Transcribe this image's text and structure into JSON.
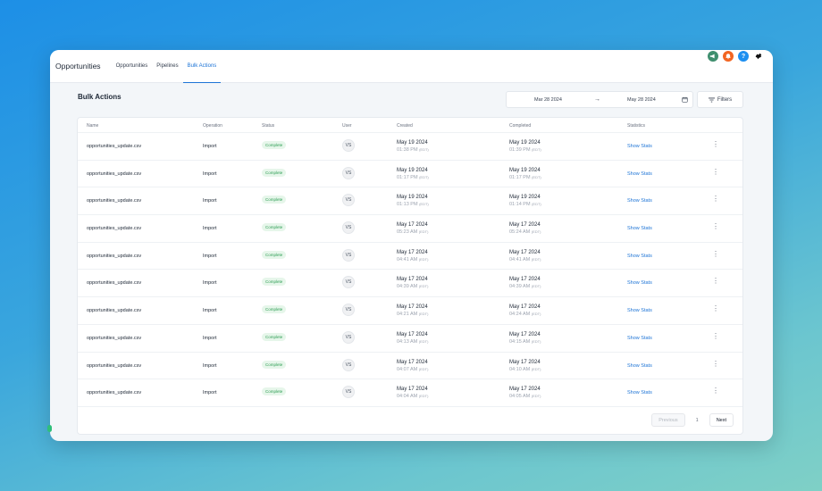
{
  "app": {
    "title": "Opportunities"
  },
  "nav": {
    "tabs": [
      "Opportunities",
      "Pipelines",
      "Bulk Actions"
    ]
  },
  "topbar": {
    "icons": [
      {
        "name": "megaphone-icon",
        "color": "#3f8f6e"
      },
      {
        "name": "bell-icon",
        "color": "#f26522"
      },
      {
        "name": "help-icon",
        "color": "#1d8ff0",
        "glyph": "?"
      },
      {
        "name": "avatar-icon",
        "color": "#111111"
      }
    ]
  },
  "page": {
    "title": "Bulk Actions"
  },
  "filters": {
    "date_from": "Mar 28 2024",
    "date_to": "May 28 2024",
    "arrow": "→",
    "filters_label": "Filters"
  },
  "table": {
    "headers": {
      "name": "Name",
      "operation": "Operation",
      "status": "Status",
      "user": "User",
      "created": "Created",
      "completed": "Completed",
      "statistics": "Statistics"
    },
    "tz": "(EDT)",
    "rows": [
      {
        "name": "opportunities_update.csv",
        "operation": "Import",
        "status": "Complete",
        "user": "VS",
        "created_date": "May 19 2024",
        "created_time": "01:38 PM",
        "completed_date": "May 19 2024",
        "completed_time": "01:39 PM",
        "stats": "Show Stats",
        "menu": "⋮"
      },
      {
        "name": "opportunities_update.csv",
        "operation": "Import",
        "status": "Complete",
        "user": "VS",
        "created_date": "May 19 2024",
        "created_time": "01:17 PM",
        "completed_date": "May 19 2024",
        "completed_time": "01:17 PM",
        "stats": "Show Stats",
        "menu": "⋮"
      },
      {
        "name": "opportunities_update.csv",
        "operation": "Import",
        "status": "Complete",
        "user": "VS",
        "created_date": "May 19 2024",
        "created_time": "01:13 PM",
        "completed_date": "May 19 2024",
        "completed_time": "01:14 PM",
        "stats": "Show Stats",
        "menu": "⋮"
      },
      {
        "name": "opportunities_update.csv",
        "operation": "Import",
        "status": "Complete",
        "user": "VS",
        "created_date": "May 17 2024",
        "created_time": "05:23 AM",
        "completed_date": "May 17 2024",
        "completed_time": "05:24 AM",
        "stats": "Show Stats",
        "menu": "⋮"
      },
      {
        "name": "opportunities_update.csv",
        "operation": "Import",
        "status": "Complete",
        "user": "VS",
        "created_date": "May 17 2024",
        "created_time": "04:41 AM",
        "completed_date": "May 17 2024",
        "completed_time": "04:41 AM",
        "stats": "Show Stats",
        "menu": "⋮"
      },
      {
        "name": "opportunities_update.csv",
        "operation": "Import",
        "status": "Complete",
        "user": "VS",
        "created_date": "May 17 2024",
        "created_time": "04:39 AM",
        "completed_date": "May 17 2024",
        "completed_time": "04:39 AM",
        "stats": "Show Stats",
        "menu": "⋮"
      },
      {
        "name": "opportunities_update.csv",
        "operation": "Import",
        "status": "Complete",
        "user": "VS",
        "created_date": "May 17 2024",
        "created_time": "04:21 AM",
        "completed_date": "May 17 2024",
        "completed_time": "04:24 AM",
        "stats": "Show Stats",
        "menu": "⋮"
      },
      {
        "name": "opportunities_update.csv",
        "operation": "Import",
        "status": "Complete",
        "user": "VS",
        "created_date": "May 17 2024",
        "created_time": "04:13 AM",
        "completed_date": "May 17 2024",
        "completed_time": "04:15 AM",
        "stats": "Show Stats",
        "menu": "⋮"
      },
      {
        "name": "opportunities_update.csv",
        "operation": "Import",
        "status": "Complete",
        "user": "VS",
        "created_date": "May 17 2024",
        "created_time": "04:07 AM",
        "completed_date": "May 17 2024",
        "completed_time": "04:10 AM",
        "stats": "Show Stats",
        "menu": "⋮"
      },
      {
        "name": "opportunities_update.csv",
        "operation": "Import",
        "status": "Complete",
        "user": "VS",
        "created_date": "May 17 2024",
        "created_time": "04:04 AM",
        "completed_date": "May 17 2024",
        "completed_time": "04:05 AM",
        "stats": "Show Stats",
        "menu": "⋮"
      }
    ]
  },
  "pagination": {
    "previous": "Previous",
    "current": "1",
    "next": "Next"
  }
}
